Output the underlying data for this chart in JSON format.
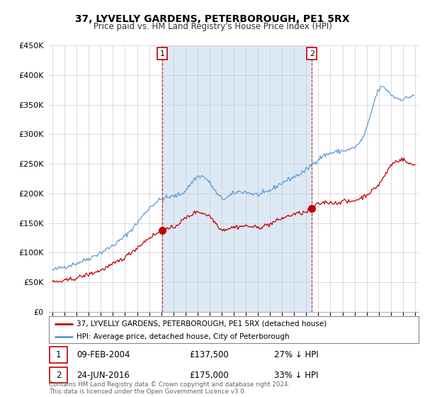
{
  "title": "37, LYVELLY GARDENS, PETERBOROUGH, PE1 5RX",
  "subtitle": "Price paid vs. HM Land Registry's House Price Index (HPI)",
  "legend_line1": "37, LYVELLY GARDENS, PETERBOROUGH, PE1 5RX (detached house)",
  "legend_line2": "HPI: Average price, detached house, City of Peterborough",
  "annotation1_label": "1",
  "annotation1_date": "09-FEB-2004",
  "annotation1_price": "£137,500",
  "annotation1_hpi": "27% ↓ HPI",
  "annotation2_label": "2",
  "annotation2_date": "24-JUN-2016",
  "annotation2_price": "£175,000",
  "annotation2_hpi": "33% ↓ HPI",
  "footer": "Contains HM Land Registry data © Crown copyright and database right 2024.\nThis data is licensed under the Open Government Licence v3.0.",
  "hpi_color": "#5b9bd5",
  "hpi_fill_color": "#dce9f5",
  "price_color": "#c00000",
  "annotation_color": "#c00000",
  "ylim_min": 0,
  "ylim_max": 450000,
  "sale1_year": 2004.08,
  "sale1_price": 137500,
  "sale2_year": 2016.47,
  "sale2_price": 175000,
  "xmin": 1995.0,
  "xmax": 2025.3
}
